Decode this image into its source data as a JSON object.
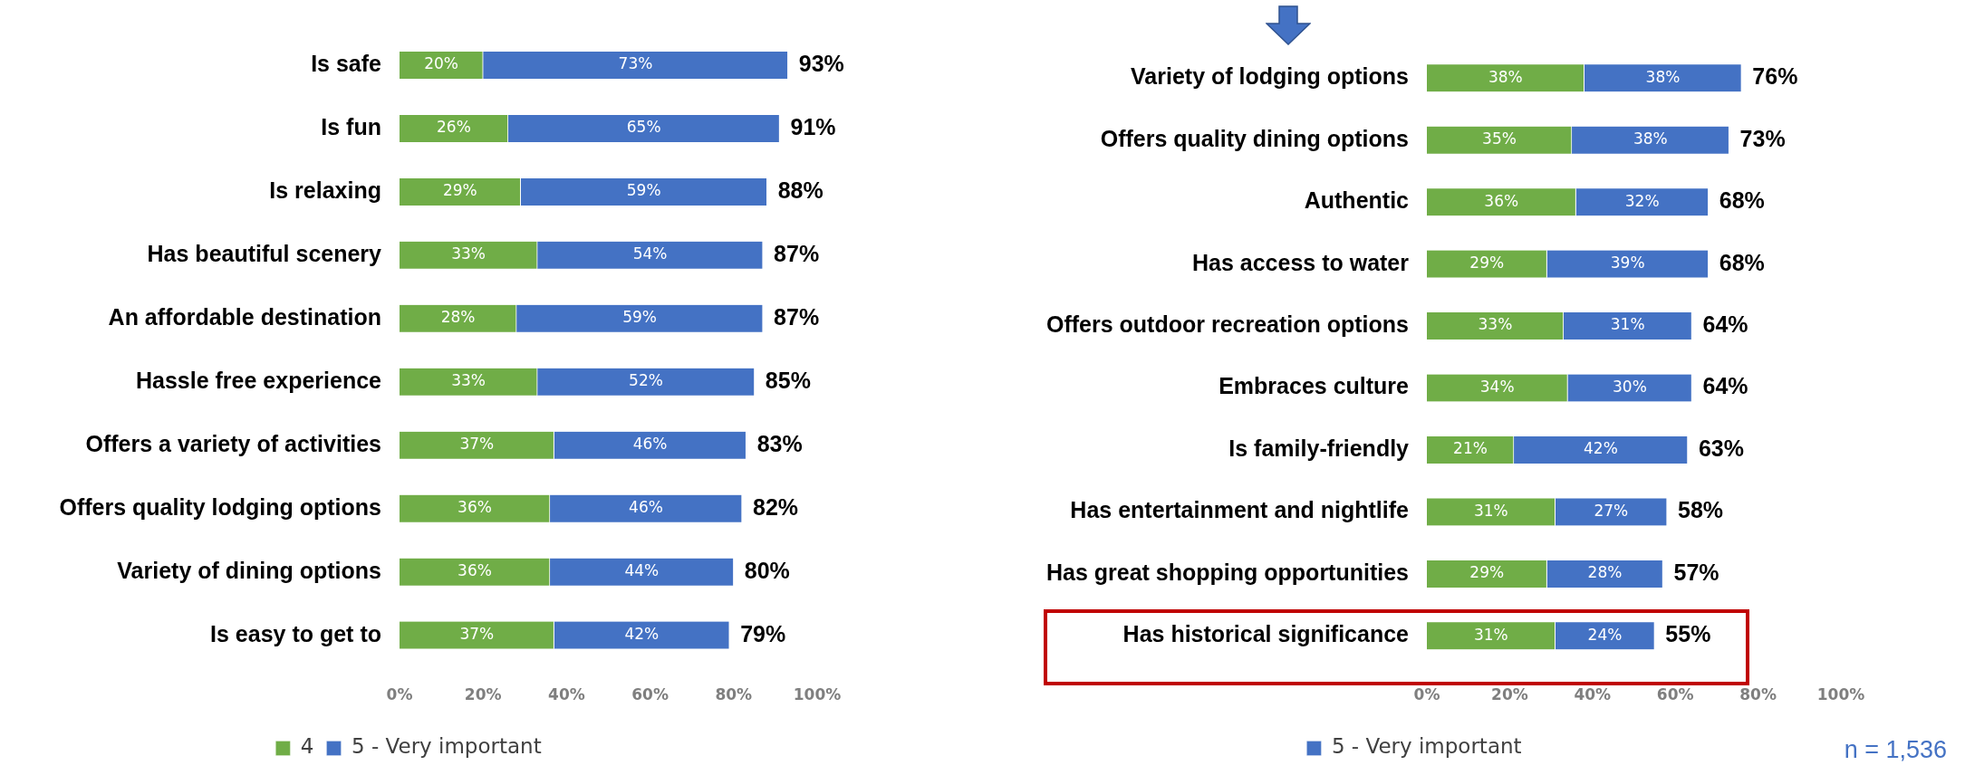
{
  "chart_data": [
    {
      "type": "bar",
      "orientation": "horizontal",
      "stacked": true,
      "legend": "bottom",
      "grid": false,
      "categories": [
        "Is safe",
        "Is fun",
        "Is relaxing",
        "Has beautiful scenery",
        "An affordable destination",
        "Hassle free experience",
        "Offers a variety of activities",
        "Offers quality lodging options",
        "Variety of dining options",
        "Is easy to get to"
      ],
      "series": [
        {
          "name": "4",
          "color": "#70ad47",
          "values": [
            20,
            26,
            29,
            33,
            28,
            33,
            37,
            36,
            36,
            37
          ],
          "value_labels": [
            "20%",
            "26%",
            "29%",
            "33%",
            "28%",
            "33%",
            "37%",
            "36%",
            "36%",
            "37%"
          ]
        },
        {
          "name": "5 - Very important",
          "color": "#4472c4",
          "values": [
            73,
            65,
            59,
            54,
            59,
            52,
            46,
            46,
            44,
            42
          ],
          "value_labels": [
            "73%",
            "65%",
            "59%",
            "54%",
            "59%",
            "52%",
            "46%",
            "46%",
            "44%",
            "42%"
          ]
        }
      ],
      "totals": [
        "93%",
        "91%",
        "88%",
        "87%",
        "87%",
        "85%",
        "83%",
        "82%",
        "80%",
        "79%"
      ],
      "xlim": [
        0,
        100
      ],
      "xticks": [
        {
          "value": 0,
          "label": "0%"
        },
        {
          "value": 20,
          "label": "20%"
        },
        {
          "value": 40,
          "label": "40%"
        },
        {
          "value": 60,
          "label": "60%"
        },
        {
          "value": 80,
          "label": "80%"
        },
        {
          "value": 100,
          "label": "100%"
        }
      ]
    },
    {
      "type": "bar",
      "orientation": "horizontal",
      "stacked": true,
      "legend": "bottom",
      "grid": false,
      "categories": [
        "Variety of lodging options",
        "Offers quality dining options",
        "Authentic",
        "Has access to water",
        "Offers outdoor recreation options",
        "Embraces culture",
        "Is family-friendly",
        "Has entertainment and nightlife",
        "Has great shopping opportunities",
        "Has historical significance"
      ],
      "series": [
        {
          "color": "#70ad47",
          "values": [
            38,
            35,
            36,
            29,
            33,
            34,
            21,
            31,
            29,
            31
          ],
          "value_labels": [
            "38%",
            "35%",
            "36%",
            "29%",
            "33%",
            "34%",
            "21%",
            "31%",
            "29%",
            "31%"
          ]
        },
        {
          "name": "5 - Very important",
          "color": "#4472c4",
          "values": [
            38,
            38,
            32,
            39,
            31,
            30,
            42,
            27,
            28,
            24
          ],
          "value_labels": [
            "38%",
            "38%",
            "32%",
            "39%",
            "31%",
            "30%",
            "42%",
            "27%",
            "28%",
            "24%"
          ]
        }
      ],
      "totals": [
        "76%",
        "73%",
        "68%",
        "68%",
        "64%",
        "64%",
        "63%",
        "58%",
        "57%",
        "55%"
      ],
      "xlim": [
        0,
        100
      ],
      "xticks": [
        {
          "value": 0,
          "label": "0%"
        },
        {
          "value": 20,
          "label": "20%"
        },
        {
          "value": 40,
          "label": "40%"
        },
        {
          "value": 60,
          "label": "60%"
        },
        {
          "value": 80,
          "label": "80%"
        },
        {
          "value": 100,
          "label": "100%"
        }
      ],
      "annotations": [
        "n = 1,536"
      ]
    }
  ]
}
